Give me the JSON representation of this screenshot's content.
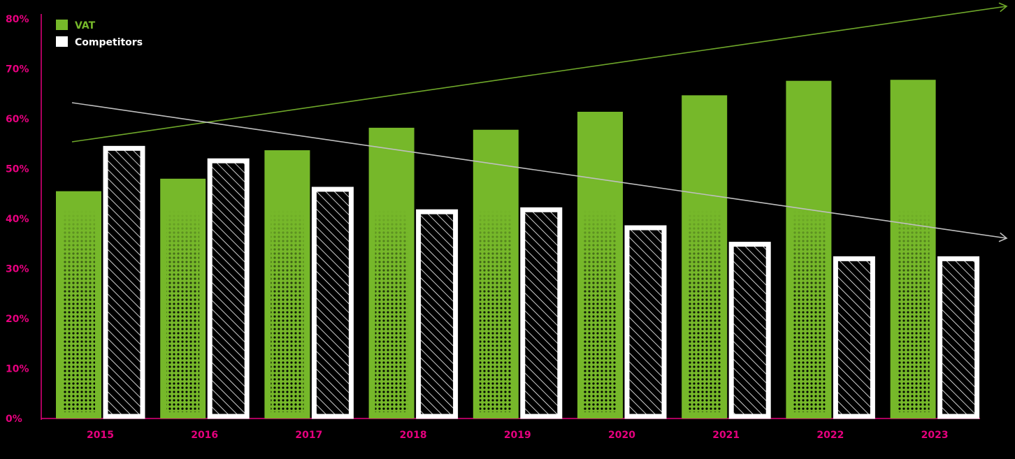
{
  "chart_data": {
    "type": "bar",
    "categories": [
      "2015",
      "2016",
      "2017",
      "2018",
      "2019",
      "2020",
      "2021",
      "2022",
      "2023"
    ],
    "series": [
      {
        "name": "VAT",
        "values": [
          45.5,
          48,
          53.7,
          58.2,
          57.8,
          61.4,
          64.7,
          67.6,
          67.8
        ]
      },
      {
        "name": "Competitors",
        "values": [
          54.5,
          52,
          46.3,
          41.8,
          42.2,
          38.6,
          35.3,
          32.4,
          32.4
        ]
      }
    ],
    "ylim": [
      0,
      80
    ],
    "yticks": [
      "0%",
      "10%",
      "20%",
      "30%",
      "40%",
      "50%",
      "60%",
      "70%",
      "80%"
    ],
    "legend_position": "top-left",
    "grid": false,
    "trend_lines": [
      {
        "series": "VAT",
        "direction": "up",
        "color": "#6fa82a"
      },
      {
        "series": "Competitors",
        "direction": "down",
        "color": "#bfbfbf"
      }
    ],
    "colors": {
      "background": "#000000",
      "vat": "#76b82a",
      "competitors": "#ffffff",
      "axis": "#e6007e",
      "tick_label": "#e6007e"
    }
  }
}
